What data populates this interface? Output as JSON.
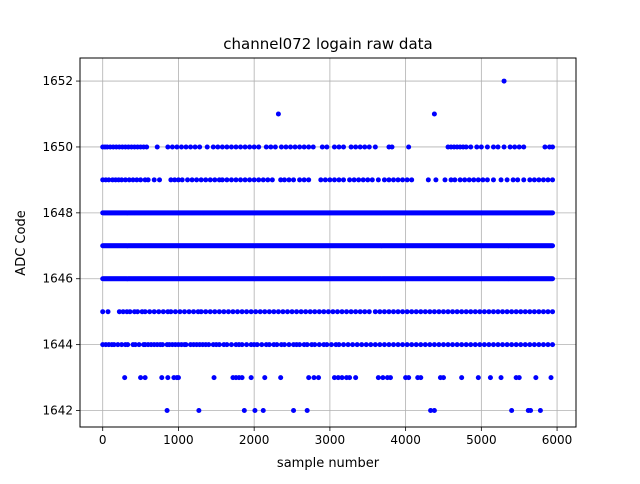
{
  "chart_data": {
    "type": "scatter",
    "title": "channel072 logain raw data",
    "xlabel": "sample number",
    "ylabel": "ADC Code",
    "xlim": [
      -300,
      6250
    ],
    "ylim": [
      1641.5,
      1652.7
    ],
    "x_ticks": [
      0,
      1000,
      2000,
      3000,
      4000,
      5000,
      6000
    ],
    "y_ticks": [
      1642,
      1644,
      1646,
      1648,
      1650,
      1652
    ],
    "grid": true,
    "marker_color": "#0000ff",
    "x_range": [
      0,
      5950
    ],
    "dense_levels": [
      {
        "y": 1646,
        "x_start": 0,
        "x_end": 5950
      },
      {
        "y": 1647,
        "x_start": 0,
        "x_end": 5950
      },
      {
        "y": 1648,
        "x_start": 0,
        "x_end": 5950
      }
    ],
    "sparse_levels": [
      {
        "y": 1644,
        "x_points": [
          0,
          40,
          80,
          120,
          150,
          200,
          250,
          300,
          330,
          400,
          430,
          480,
          540,
          560,
          600,
          640,
          680,
          720,
          760,
          790,
          850,
          880,
          920,
          960,
          1000,
          1040,
          1080,
          1100,
          1160,
          1200,
          1240,
          1280,
          1320,
          1360,
          1400,
          1460,
          1500,
          1540,
          1600,
          1640,
          1700,
          1760,
          1800,
          1840,
          1900,
          1960,
          2000,
          2040,
          2100,
          2160,
          2200,
          2260,
          2300,
          2360,
          2400,
          2460,
          2520,
          2560,
          2600,
          2660,
          2700,
          2760,
          2800,
          2860,
          2920,
          2960,
          3020,
          3080,
          3120,
          3180,
          3240,
          3300,
          3360,
          3420,
          3480,
          3540,
          3600,
          3660,
          3720,
          3780,
          3840,
          3900,
          3960,
          4020,
          4080,
          4140,
          4200,
          4260,
          4320,
          4380,
          4440,
          4500,
          4560,
          4620,
          4680,
          4740,
          4800,
          4860,
          4920,
          4980,
          5040,
          5100,
          5160,
          5220,
          5280,
          5340,
          5400,
          5460,
          5520,
          5580,
          5640,
          5700,
          5760,
          5820,
          5880,
          5940
        ]
      },
      {
        "y": 1645,
        "x_points": [
          0,
          70,
          220,
          270,
          320,
          360,
          420,
          460,
          520,
          560,
          620,
          680,
          740,
          800,
          860,
          900,
          960,
          1020,
          1080,
          1140,
          1200,
          1260,
          1300,
          1360,
          1420,
          1480,
          1540,
          1600,
          1660,
          1720,
          1780,
          1840,
          1900,
          1960,
          2020,
          2080,
          2140,
          2200,
          2260,
          2320,
          2380,
          2440,
          2500,
          2560,
          2620,
          2680,
          2740,
          2800,
          2860,
          2920,
          2980,
          3040,
          3100,
          3160,
          3220,
          3280,
          3340,
          3400,
          3460,
          3520,
          3600,
          3660,
          3720,
          3780,
          3840,
          3900,
          3960,
          4020,
          4080,
          4140,
          4200,
          4260,
          4320,
          4380,
          4440,
          4500,
          4560,
          4620,
          4680,
          4740,
          4800,
          4860,
          4920,
          4980,
          5040,
          5100,
          5160,
          5220,
          5280,
          5340,
          5400,
          5460,
          5520,
          5580,
          5640,
          5700,
          5760,
          5820,
          5880,
          5940
        ]
      },
      {
        "y": 1649,
        "x_points": [
          0,
          40,
          80,
          130,
          170,
          210,
          250,
          300,
          350,
          400,
          450,
          500,
          560,
          600,
          680,
          750,
          900,
          950,
          1000,
          1050,
          1120,
          1180,
          1240,
          1300,
          1360,
          1420,
          1480,
          1540,
          1580,
          1640,
          1700,
          1760,
          1820,
          1880,
          1940,
          2000,
          2060,
          2120,
          2180,
          2240,
          2350,
          2400,
          2460,
          2520,
          2600,
          2660,
          2720,
          2880,
          2940,
          3000,
          3060,
          3120,
          3180,
          3260,
          3320,
          3380,
          3440,
          3500,
          3560,
          3640,
          3720,
          3780,
          3840,
          3900,
          3960,
          4020,
          4080,
          4300,
          4400,
          4520,
          4600,
          4650,
          4720,
          4780,
          4840,
          4900,
          4960,
          5020,
          5080,
          5160,
          5260,
          5340,
          5420,
          5480,
          5560,
          5640,
          5700,
          5760,
          5820,
          5880,
          5940
        ]
      },
      {
        "y": 1650,
        "x_points": [
          0,
          30,
          60,
          100,
          140,
          180,
          220,
          260,
          300,
          340,
          380,
          420,
          460,
          500,
          540,
          580,
          720,
          860,
          920,
          980,
          1040,
          1100,
          1160,
          1220,
          1280,
          1380,
          1460,
          1520,
          1580,
          1640,
          1700,
          1760,
          1820,
          1880,
          1940,
          2000,
          2060,
          2160,
          2220,
          2280,
          2360,
          2420,
          2480,
          2540,
          2600,
          2660,
          2720,
          2780,
          2900,
          2960,
          3060,
          3120,
          3180,
          3280,
          3340,
          3400,
          3460,
          3520,
          3600,
          3780,
          3820,
          4040,
          4560,
          4600,
          4640,
          4680,
          4720,
          4760,
          4800,
          4860,
          4940,
          5000,
          5080,
          5160,
          5220,
          5300,
          5380,
          5440,
          5500,
          5560,
          5840,
          5900,
          5940
        ]
      }
    ],
    "outliers": [
      {
        "x": 850,
        "y": 1642
      },
      {
        "x": 1270,
        "y": 1642
      },
      {
        "x": 1870,
        "y": 1642
      },
      {
        "x": 2010,
        "y": 1642
      },
      {
        "x": 2120,
        "y": 1642
      },
      {
        "x": 2520,
        "y": 1642
      },
      {
        "x": 2700,
        "y": 1642
      },
      {
        "x": 4330,
        "y": 1642
      },
      {
        "x": 4380,
        "y": 1642
      },
      {
        "x": 5400,
        "y": 1642
      },
      {
        "x": 5620,
        "y": 1642
      },
      {
        "x": 5650,
        "y": 1642
      },
      {
        "x": 5780,
        "y": 1642
      },
      {
        "x": 290,
        "y": 1643
      },
      {
        "x": 500,
        "y": 1643
      },
      {
        "x": 560,
        "y": 1643
      },
      {
        "x": 780,
        "y": 1643
      },
      {
        "x": 860,
        "y": 1643
      },
      {
        "x": 940,
        "y": 1643
      },
      {
        "x": 980,
        "y": 1643
      },
      {
        "x": 1000,
        "y": 1643
      },
      {
        "x": 1470,
        "y": 1643
      },
      {
        "x": 1720,
        "y": 1643
      },
      {
        "x": 1760,
        "y": 1643
      },
      {
        "x": 1800,
        "y": 1643
      },
      {
        "x": 1840,
        "y": 1643
      },
      {
        "x": 1960,
        "y": 1643
      },
      {
        "x": 2140,
        "y": 1643
      },
      {
        "x": 2350,
        "y": 1643
      },
      {
        "x": 2720,
        "y": 1643
      },
      {
        "x": 2790,
        "y": 1643
      },
      {
        "x": 2850,
        "y": 1643
      },
      {
        "x": 3060,
        "y": 1643
      },
      {
        "x": 3110,
        "y": 1643
      },
      {
        "x": 3160,
        "y": 1643
      },
      {
        "x": 3220,
        "y": 1643
      },
      {
        "x": 3260,
        "y": 1643
      },
      {
        "x": 3340,
        "y": 1643
      },
      {
        "x": 3640,
        "y": 1643
      },
      {
        "x": 3700,
        "y": 1643
      },
      {
        "x": 3760,
        "y": 1643
      },
      {
        "x": 3800,
        "y": 1643
      },
      {
        "x": 4000,
        "y": 1643
      },
      {
        "x": 4040,
        "y": 1643
      },
      {
        "x": 4160,
        "y": 1643
      },
      {
        "x": 4200,
        "y": 1643
      },
      {
        "x": 4460,
        "y": 1643
      },
      {
        "x": 4500,
        "y": 1643
      },
      {
        "x": 4740,
        "y": 1643
      },
      {
        "x": 4960,
        "y": 1643
      },
      {
        "x": 5120,
        "y": 1643
      },
      {
        "x": 5260,
        "y": 1643
      },
      {
        "x": 5460,
        "y": 1643
      },
      {
        "x": 5500,
        "y": 1643
      },
      {
        "x": 5720,
        "y": 1643
      },
      {
        "x": 5920,
        "y": 1643
      },
      {
        "x": 2320,
        "y": 1651
      },
      {
        "x": 4380,
        "y": 1651
      },
      {
        "x": 5300,
        "y": 1652
      }
    ]
  }
}
